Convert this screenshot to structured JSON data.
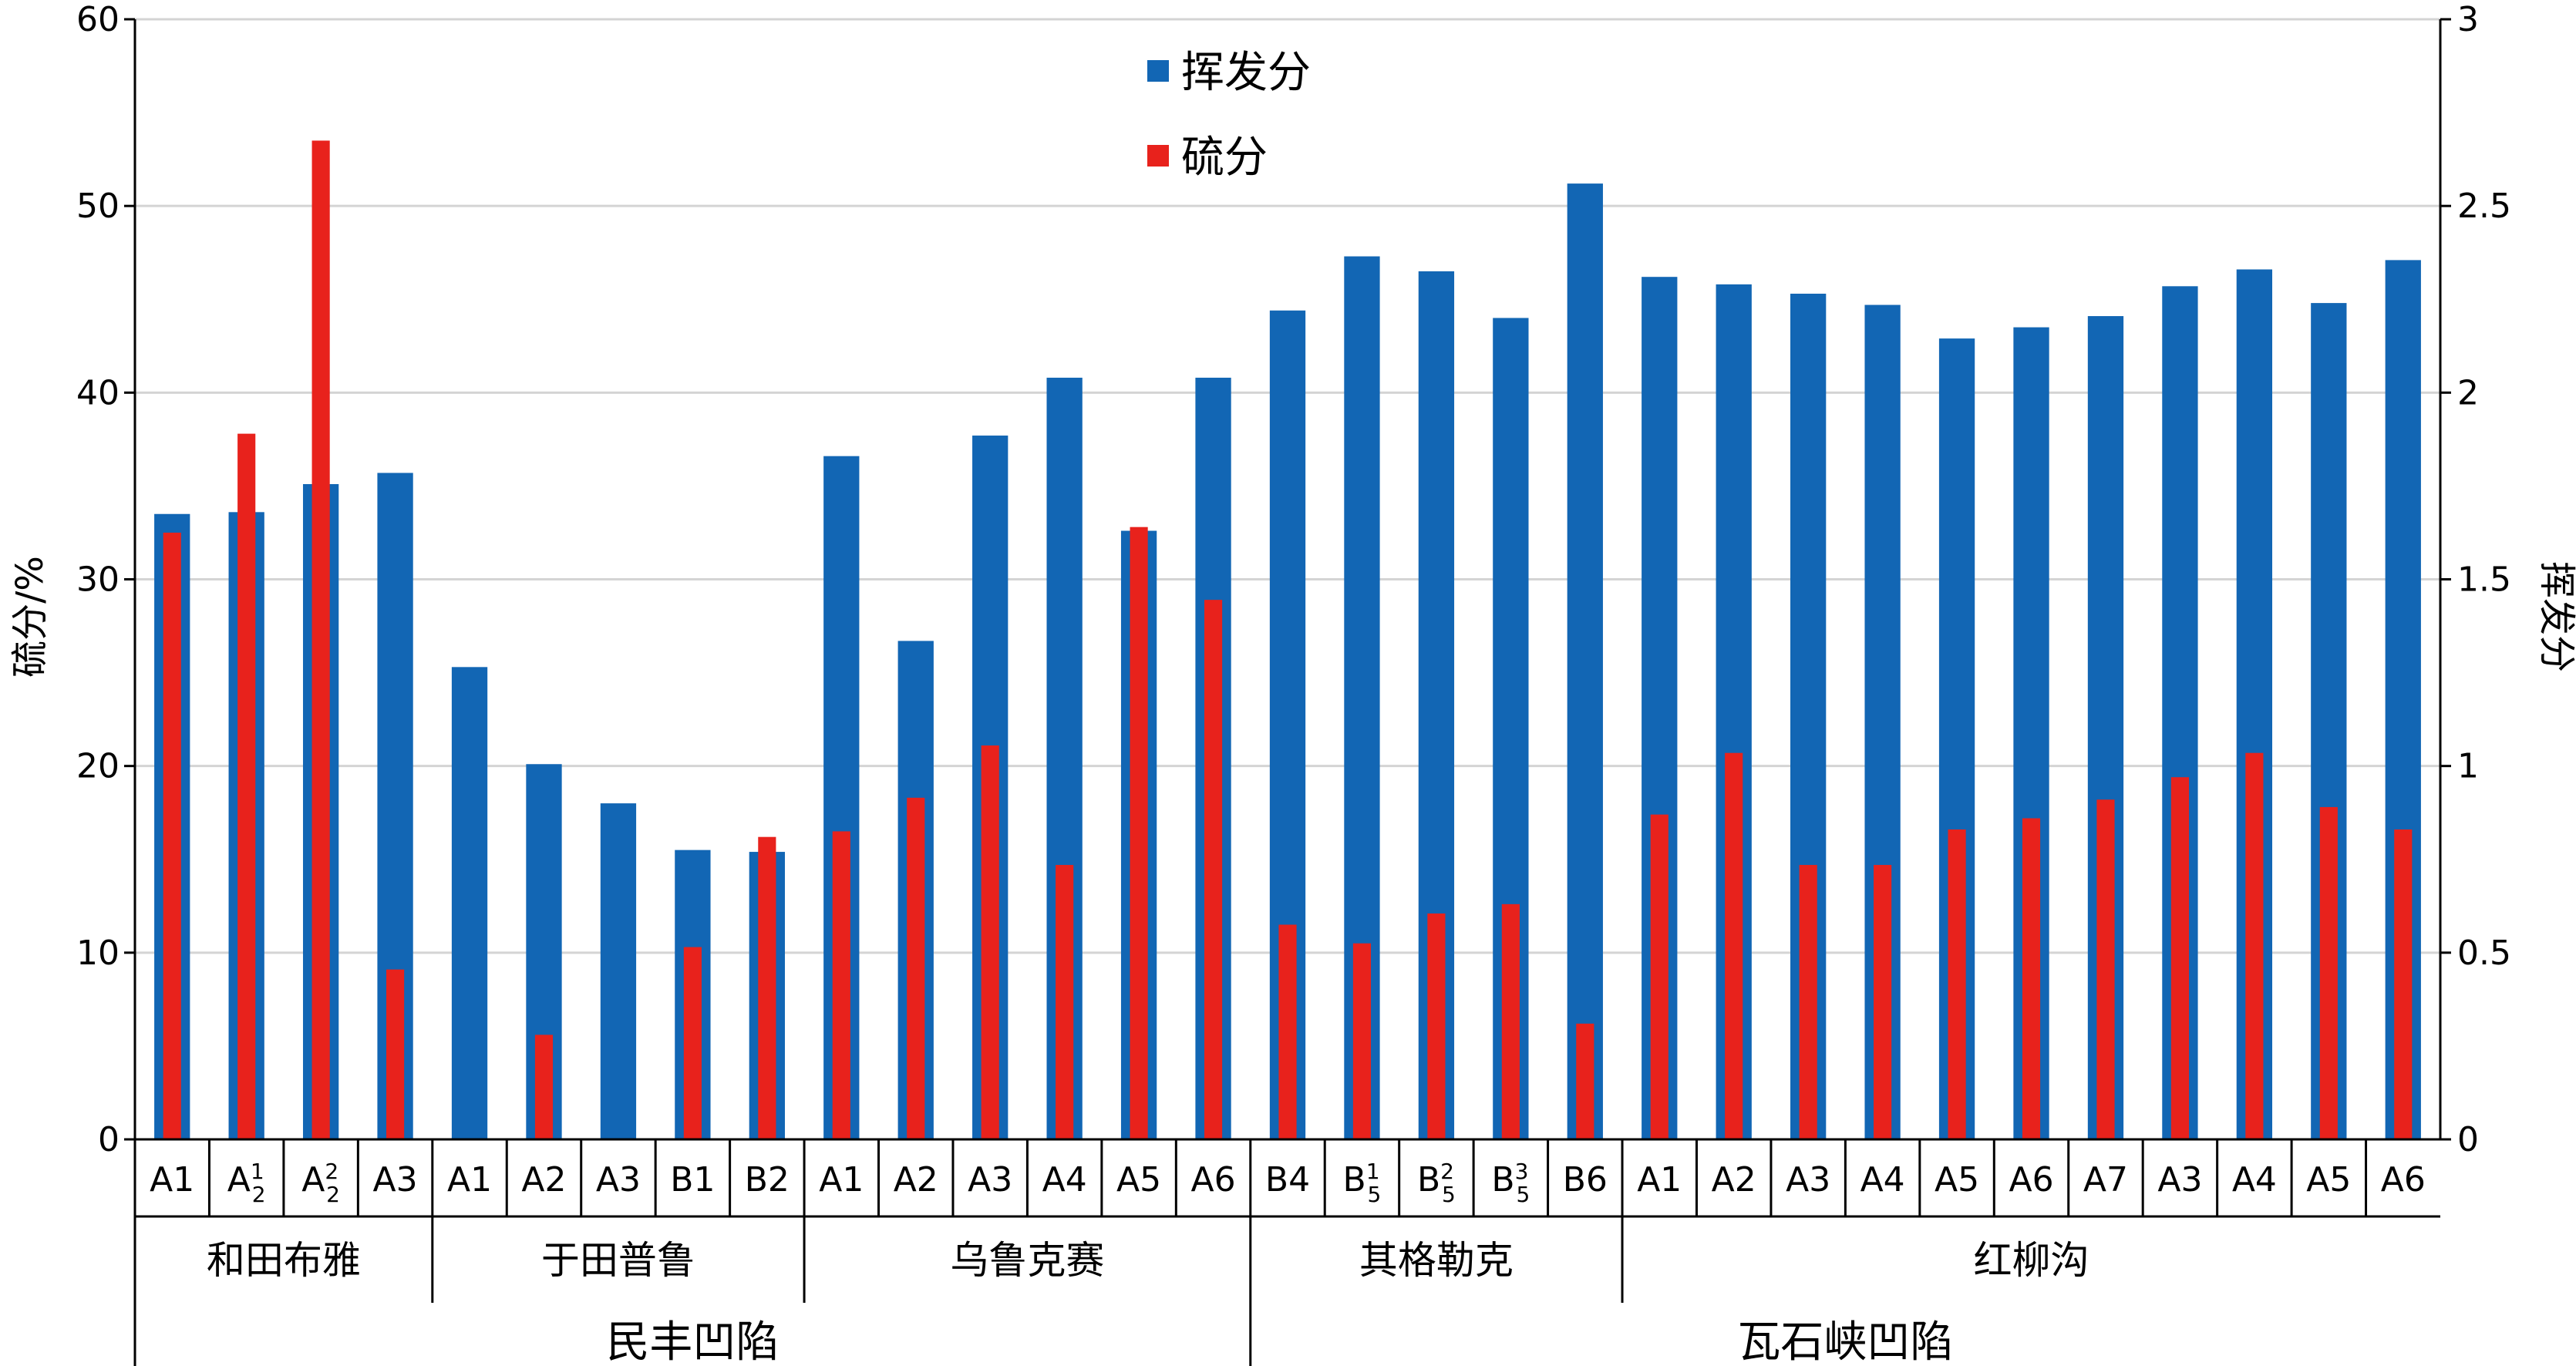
{
  "chart_data": {
    "type": "bar",
    "legend_position": "top-center",
    "grid": true,
    "left_axis": {
      "label": "硫分/%",
      "range": [
        0,
        60
      ],
      "ticks": [
        "0",
        "10",
        "20",
        "30",
        "40",
        "50",
        "60"
      ]
    },
    "right_axis": {
      "label": "挥发分",
      "range": [
        0,
        3
      ],
      "ticks": [
        "0",
        "0.5",
        "1",
        "1.5",
        "2",
        "2.5",
        "3"
      ]
    },
    "categories": [
      {
        "base": "A1"
      },
      {
        "base": "A",
        "sub": "2",
        "sup": "1"
      },
      {
        "base": "A",
        "sub": "2",
        "sup": "2"
      },
      {
        "base": "A3"
      },
      {
        "base": "A1"
      },
      {
        "base": "A2"
      },
      {
        "base": "A3"
      },
      {
        "base": "B1"
      },
      {
        "base": "B2"
      },
      {
        "base": "A1"
      },
      {
        "base": "A2"
      },
      {
        "base": "A3"
      },
      {
        "base": "A4"
      },
      {
        "base": "A5"
      },
      {
        "base": "A6"
      },
      {
        "base": "B4"
      },
      {
        "base": "B",
        "sub": "5",
        "sup": "1"
      },
      {
        "base": "B",
        "sub": "5",
        "sup": "2"
      },
      {
        "base": "B",
        "sub": "5",
        "sup": "3"
      },
      {
        "base": "B6"
      },
      {
        "base": "A1"
      },
      {
        "base": "A2"
      },
      {
        "base": "A3"
      },
      {
        "base": "A4"
      },
      {
        "base": "A5"
      },
      {
        "base": "A6"
      },
      {
        "base": "A7"
      },
      {
        "base": "A3"
      },
      {
        "base": "A4"
      },
      {
        "base": "A5"
      },
      {
        "base": "A6"
      }
    ],
    "groups": [
      {
        "label": "和田布雅",
        "start": 0,
        "count": 4
      },
      {
        "label": "于田普鲁",
        "start": 4,
        "count": 5
      },
      {
        "label": "乌鲁克赛",
        "start": 9,
        "count": 6
      },
      {
        "label": "其格勒克",
        "start": 15,
        "count": 5
      },
      {
        "label": "红柳沟",
        "start": 20,
        "count": 11
      }
    ],
    "supergroups": [
      {
        "label": "民丰凹陷",
        "start": 0,
        "count": 15
      },
      {
        "label": "瓦石峡凹陷",
        "start": 15,
        "count": 16
      }
    ],
    "series": [
      {
        "name": "挥发分",
        "axis": "left",
        "color": "#1266b4",
        "values": [
          33.5,
          33.6,
          35.1,
          35.7,
          25.3,
          20.1,
          18.0,
          15.5,
          15.4,
          36.6,
          26.7,
          37.7,
          40.8,
          32.6,
          40.8,
          44.4,
          47.3,
          46.5,
          44.0,
          51.2,
          46.2,
          45.8,
          45.3,
          44.7,
          42.9,
          43.5,
          44.1,
          45.7,
          46.6,
          44.8,
          47.1
        ]
      },
      {
        "name": "硫分",
        "axis": "left",
        "color": "#e8221c",
        "values": [
          32.5,
          37.8,
          53.5,
          9.1,
          0,
          5.6,
          0,
          10.3,
          16.2,
          16.5,
          18.3,
          21.1,
          14.7,
          32.8,
          28.9,
          11.5,
          10.5,
          12.1,
          12.6,
          6.2,
          17.4,
          20.7,
          14.7,
          14.7,
          16.6,
          17.2,
          18.2,
          19.4,
          20.7,
          17.8,
          16.6
        ]
      }
    ]
  }
}
